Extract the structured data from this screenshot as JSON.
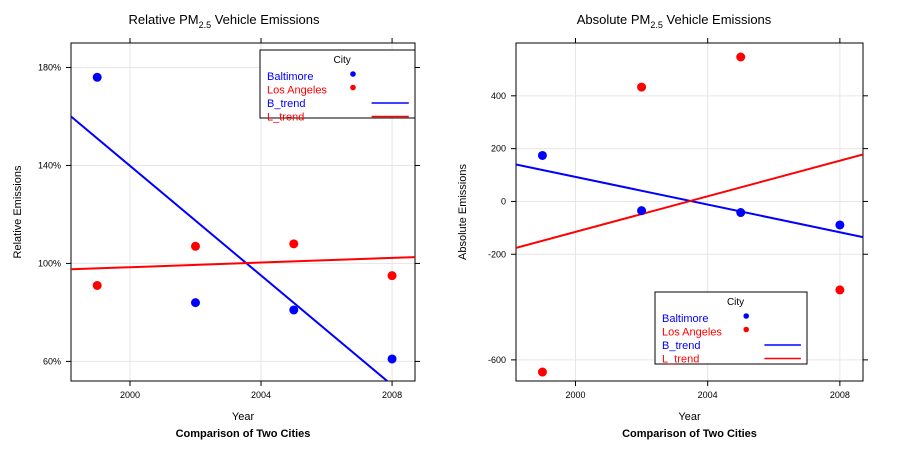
{
  "chart_data": [
    {
      "type": "scatter",
      "title_main": "Relative PM",
      "title_sub": "2.5",
      "title_rest": " Vehicle Emissions",
      "xlabel": "Year",
      "ylabel": "Relative Emissions",
      "caption": "Comparison of Two Cities",
      "xlim": [
        1998.2,
        2008.7
      ],
      "ylim": [
        52,
        190
      ],
      "x_ticks": [
        2000,
        2004,
        2008
      ],
      "y_ticks": [
        60,
        100,
        140,
        180
      ],
      "y_tick_labels": [
        "60%",
        "100%",
        "140%",
        "180%"
      ],
      "grid": true,
      "legend": {
        "title": "City",
        "placement": "top-right",
        "entries": [
          {
            "label": "Baltimore",
            "color": "#0000ff",
            "kind": "point"
          },
          {
            "label": "Los Angeles",
            "color": "#ff0000",
            "kind": "point"
          },
          {
            "label": "B_trend",
            "color": "#0000ff",
            "kind": "line"
          },
          {
            "label": "L_trend",
            "color": "#ff0000",
            "kind": "line"
          }
        ]
      },
      "series": [
        {
          "name": "Baltimore",
          "color": "#0000ff",
          "x": [
            1999,
            2002,
            2005,
            2008
          ],
          "y": [
            176,
            84,
            81,
            61
          ]
        },
        {
          "name": "Los Angeles",
          "color": "#ff0000",
          "x": [
            1999,
            2002,
            2005,
            2008
          ],
          "y": [
            91,
            107,
            108,
            95
          ]
        }
      ],
      "trends": [
        {
          "name": "B_trend",
          "color": "#0000ff",
          "x": [
            1998.2,
            2007.85
          ],
          "y": [
            160,
            52
          ]
        },
        {
          "name": "L_trend",
          "color": "#ff0000",
          "x": [
            1998.2,
            2008.7
          ],
          "y": [
            97.6,
            102.6
          ]
        }
      ]
    },
    {
      "type": "scatter",
      "title_main": "Absolute PM",
      "title_sub": "2.5",
      "title_rest": " Vehicle Emissions",
      "xlabel": "Year",
      "ylabel": "Absolute Emissions",
      "caption": "Comparison of Two Cities",
      "xlim": [
        1998.2,
        2008.7
      ],
      "ylim": [
        -680,
        600
      ],
      "x_ticks": [
        2000,
        2004,
        2008
      ],
      "y_ticks": [
        -600,
        -200,
        0,
        200,
        400
      ],
      "y_tick_labels": [
        "-600",
        "-200",
        "0",
        "200",
        "400"
      ],
      "grid": true,
      "legend": {
        "title": "City",
        "placement": "bottom-right",
        "entries": [
          {
            "label": "Baltimore",
            "color": "#0000ff",
            "kind": "point"
          },
          {
            "label": "Los Angeles",
            "color": "#ff0000",
            "kind": "point"
          },
          {
            "label": "B_trend",
            "color": "#0000ff",
            "kind": "line"
          },
          {
            "label": "L_trend",
            "color": "#ff0000",
            "kind": "line"
          }
        ]
      },
      "series": [
        {
          "name": "Baltimore",
          "color": "#0000ff",
          "x": [
            1999,
            2002,
            2005,
            2008
          ],
          "y": [
            174,
            -35,
            -42,
            -89
          ]
        },
        {
          "name": "Los Angeles",
          "color": "#ff0000",
          "x": [
            1999,
            2002,
            2005,
            2008
          ],
          "y": [
            -646,
            433,
            547,
            -335
          ]
        }
      ],
      "trends": [
        {
          "name": "B_trend",
          "color": "#0000ff",
          "x": [
            1998.2,
            2008.7
          ],
          "y": [
            140,
            -135
          ]
        },
        {
          "name": "L_trend",
          "color": "#ff0000",
          "x": [
            1998.2,
            2008.7
          ],
          "y": [
            -176,
            178
          ]
        }
      ]
    }
  ]
}
